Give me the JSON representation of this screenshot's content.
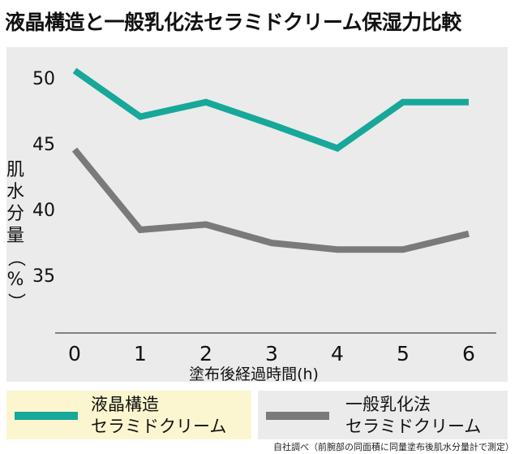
{
  "title": "液晶構造と一般乳化法セラミドクリーム保湿力比較",
  "note": "自社調べ（前腕部の同面積に同量塗布後肌水分量計で測定）",
  "chart_data": {
    "type": "line",
    "title": "液晶構造と一般乳化法セラミドクリーム保湿力比較",
    "xlabel": "塗布後経過時間(h)",
    "ylabel": "肌水分量（%）",
    "x": [
      0,
      1,
      2,
      3,
      4,
      5,
      6
    ],
    "x_ticks": [
      "0",
      "1",
      "2",
      "3",
      "4",
      "5",
      "6"
    ],
    "y_ticks": [
      "50",
      "45",
      "40",
      "35"
    ],
    "ylim": [
      30,
      52.5
    ],
    "grid": false,
    "legend_position": "bottom",
    "series": [
      {
        "name": "液晶構造\nセラミドクリーム",
        "values": [
          50.5,
          47.0,
          48.1,
          46.4,
          44.6,
          48.1,
          48.1
        ],
        "color": "#17a899"
      },
      {
        "name": "一般乳化法\nセラミドクリーム",
        "values": [
          44.5,
          38.4,
          38.8,
          37.4,
          36.9,
          36.9,
          38.1
        ],
        "color": "#7a7a7a"
      }
    ]
  }
}
